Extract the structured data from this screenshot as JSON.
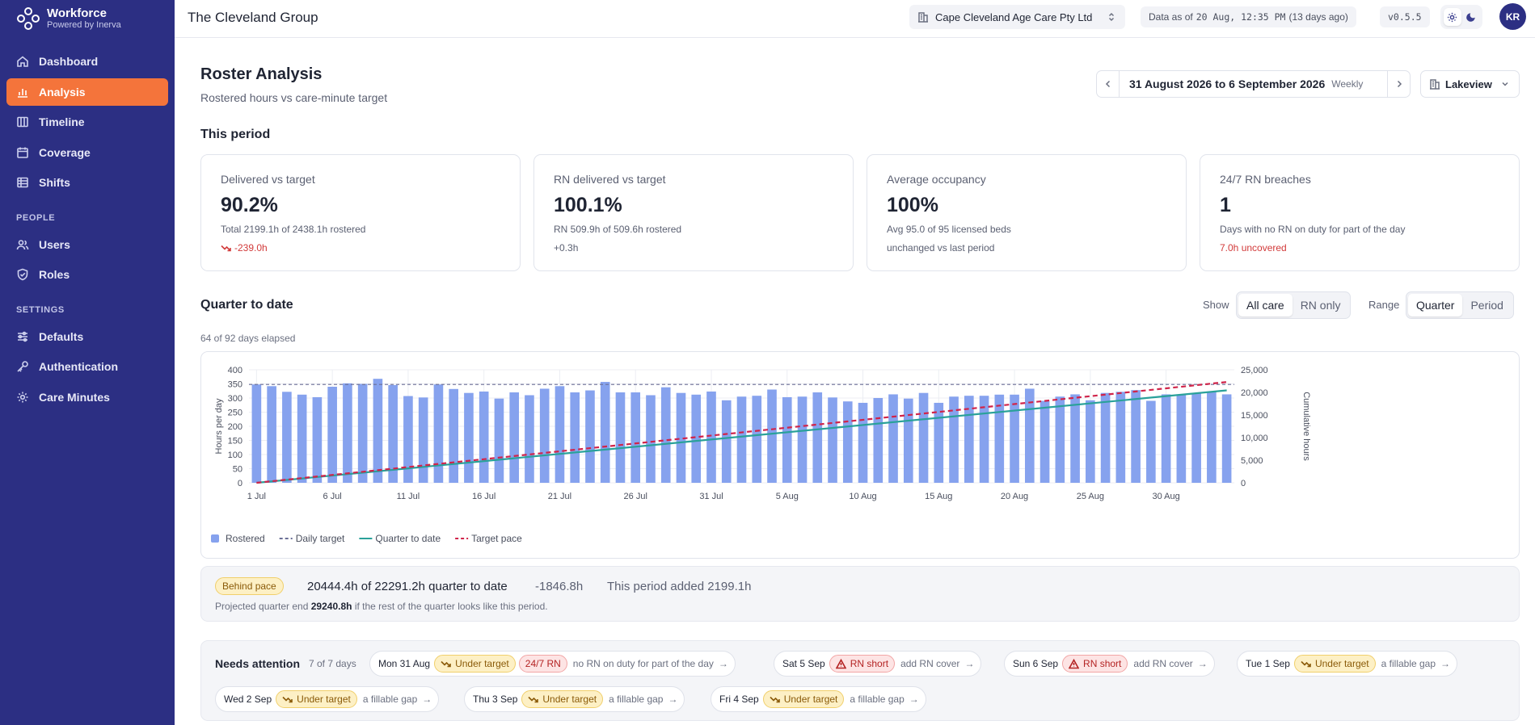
{
  "app": {
    "name": "Workforce",
    "tagline": "Powered by Inerva"
  },
  "sidebar": {
    "main_items": [
      {
        "label": "Dashboard",
        "icon": "home-icon"
      },
      {
        "label": "Analysis",
        "icon": "bar-chart-icon",
        "active": true
      },
      {
        "label": "Timeline",
        "icon": "columns-icon"
      },
      {
        "label": "Coverage",
        "icon": "calendar-icon"
      },
      {
        "label": "Shifts",
        "icon": "list-icon"
      }
    ],
    "people_heading": "PEOPLE",
    "people_items": [
      {
        "label": "Users",
        "icon": "users-icon"
      },
      {
        "label": "Roles",
        "icon": "shield-icon"
      }
    ],
    "settings_heading": "SETTINGS",
    "settings_items": [
      {
        "label": "Defaults",
        "icon": "sliders-icon"
      },
      {
        "label": "Authentication",
        "icon": "key-icon"
      },
      {
        "label": "Care Minutes",
        "icon": "gear-icon"
      }
    ]
  },
  "topbar": {
    "org_title": "The Cleveland Group",
    "facility": "Cape Cleveland Age Care Pty Ltd",
    "data_as_of_label": "Data as of",
    "data_as_of_value": "20 Aug, 12:35 PM",
    "data_as_of_age": "(13 days ago)",
    "version": "v0.5.5",
    "avatar_initials": "KR"
  },
  "header": {
    "title": "Roster Analysis",
    "subtitle": "Rostered hours vs care-minute target",
    "period_label": "31 August 2026 to 6 September 2026",
    "period_frequency": "Weekly",
    "unit": "Lakeview"
  },
  "this_period": {
    "heading": "This period",
    "kpis": [
      {
        "title": "Delivered vs target",
        "value": "90.2%",
        "detail": "Total 2199.1h of 2438.1h rostered",
        "delta": "-239.0h",
        "delta_negative": true
      },
      {
        "title": "RN delivered vs target",
        "value": "100.1%",
        "detail": "RN 509.9h of 509.6h rostered",
        "delta": "+0.3h",
        "delta_negative": false
      },
      {
        "title": "Average occupancy",
        "value": "100%",
        "detail": "Avg 95.0 of 95 licensed beds",
        "delta": "unchanged vs last period",
        "delta_negative": false
      },
      {
        "title": "24/7 RN breaches",
        "value": "1",
        "detail": "Days with no RN on duty for part of the day",
        "delta": "7.0h uncovered",
        "delta_negative": true
      }
    ]
  },
  "quarter": {
    "heading": "Quarter to date",
    "elapsed": "64 of 92 days elapsed",
    "show_label": "Show",
    "show_options": [
      "All care",
      "RN only"
    ],
    "show_selected": "All care",
    "range_label": "Range",
    "range_options": [
      "Quarter",
      "Period"
    ],
    "range_selected": "Quarter"
  },
  "chart_data": {
    "type": "bar",
    "xlabel": "",
    "ylabel": "Hours per day",
    "ylabel_right": "Cumulative hours",
    "ylim": [
      0,
      400
    ],
    "ylim_right": [
      0,
      25000
    ],
    "yticks": [
      "0",
      "50",
      "100",
      "150",
      "200",
      "250",
      "300",
      "350",
      "400"
    ],
    "yticks_right": [
      "0",
      "5,000",
      "10,000",
      "15,000",
      "20,000",
      "25,000"
    ],
    "x_tick_labels": [
      {
        "index": 0,
        "label": "1 Jul"
      },
      {
        "index": 5,
        "label": "6 Jul"
      },
      {
        "index": 10,
        "label": "11 Jul"
      },
      {
        "index": 15,
        "label": "16 Jul"
      },
      {
        "index": 20,
        "label": "21 Jul"
      },
      {
        "index": 25,
        "label": "26 Jul"
      },
      {
        "index": 30,
        "label": "31 Jul"
      },
      {
        "index": 35,
        "label": "5 Aug"
      },
      {
        "index": 40,
        "label": "10 Aug"
      },
      {
        "index": 45,
        "label": "15 Aug"
      },
      {
        "index": 50,
        "label": "20 Aug"
      },
      {
        "index": 55,
        "label": "25 Aug"
      },
      {
        "index": 60,
        "label": "30 Aug"
      }
    ],
    "grid": true,
    "legend_position": "bottom-left",
    "series": [
      {
        "name": "Rostered",
        "kind": "bar",
        "axis": "left",
        "color": "#86a2ee",
        "values": [
          348,
          342,
          322,
          312,
          303,
          340,
          352,
          350,
          368,
          346,
          307,
          302,
          348,
          332,
          318,
          323,
          298,
          320,
          310,
          333,
          342,
          320,
          327,
          357,
          320,
          320,
          310,
          338,
          318,
          312,
          323,
          292,
          305,
          308,
          330,
          303,
          305,
          320,
          302,
          288,
          283,
          300,
          313,
          298,
          318,
          283,
          305,
          308,
          308,
          312,
          312,
          333,
          290,
          305,
          313,
          292,
          318,
          322,
          328,
          290,
          313,
          313,
          318,
          323,
          313
        ]
      },
      {
        "name": "Daily target",
        "kind": "line",
        "axis": "left",
        "style": "dashed",
        "color": "#6b6f96",
        "values": [
          348
        ]
      },
      {
        "name": "Quarter to date",
        "kind": "line",
        "axis": "right",
        "color": "#2aa19a",
        "x": [
          0,
          64
        ],
        "values": [
          0,
          20444.4
        ]
      },
      {
        "name": "Target pace",
        "kind": "line",
        "axis": "right",
        "style": "dashed",
        "color": "#d0244a",
        "x": [
          0,
          64
        ],
        "values": [
          0,
          22291.2
        ]
      }
    ]
  },
  "pace": {
    "badge": "Behind pace",
    "summary": "20444.4h of 22291.2h quarter to date",
    "delta": "-1846.8h",
    "added": "This period added 2199.1h",
    "projection_prefix": "Projected quarter end",
    "projection_value": "29240.8h",
    "projection_suffix": "if the rest of the quarter looks like this period."
  },
  "attention": {
    "title": "Needs attention",
    "count": "7 of 7 days",
    "items": [
      {
        "date": "Mon 31 Aug",
        "tags": [
          {
            "label": "Under target",
            "tone": "amber",
            "icon": "trend-down-icon"
          },
          {
            "label": "24/7 RN",
            "tone": "red",
            "icon": ""
          }
        ],
        "desc": "no RN on duty for part of the day"
      },
      {
        "date": "Sat 5 Sep",
        "tags": [
          {
            "label": "RN short",
            "tone": "red",
            "icon": "warning-icon"
          }
        ],
        "desc": "add RN cover"
      },
      {
        "date": "Sun 6 Sep",
        "tags": [
          {
            "label": "RN short",
            "tone": "red",
            "icon": "warning-icon"
          }
        ],
        "desc": "add RN cover"
      },
      {
        "date": "Tue 1 Sep",
        "tags": [
          {
            "label": "Under target",
            "tone": "amber",
            "icon": "trend-down-icon"
          }
        ],
        "desc": "a fillable gap"
      },
      {
        "date": "Wed 2 Sep",
        "tags": [
          {
            "label": "Under target",
            "tone": "amber",
            "icon": "trend-down-icon"
          }
        ],
        "desc": "a fillable gap"
      },
      {
        "date": "Thu 3 Sep",
        "tags": [
          {
            "label": "Under target",
            "tone": "amber",
            "icon": "trend-down-icon"
          }
        ],
        "desc": "a fillable gap"
      },
      {
        "date": "Fri 4 Sep",
        "tags": [
          {
            "label": "Under target",
            "tone": "amber",
            "icon": "trend-down-icon"
          }
        ],
        "desc": "a fillable gap"
      }
    ],
    "arrow": "→"
  },
  "colors": {
    "sidebar_bg": "#2c2f83",
    "accent": "#f4743b",
    "negative": "#d23a3a"
  }
}
